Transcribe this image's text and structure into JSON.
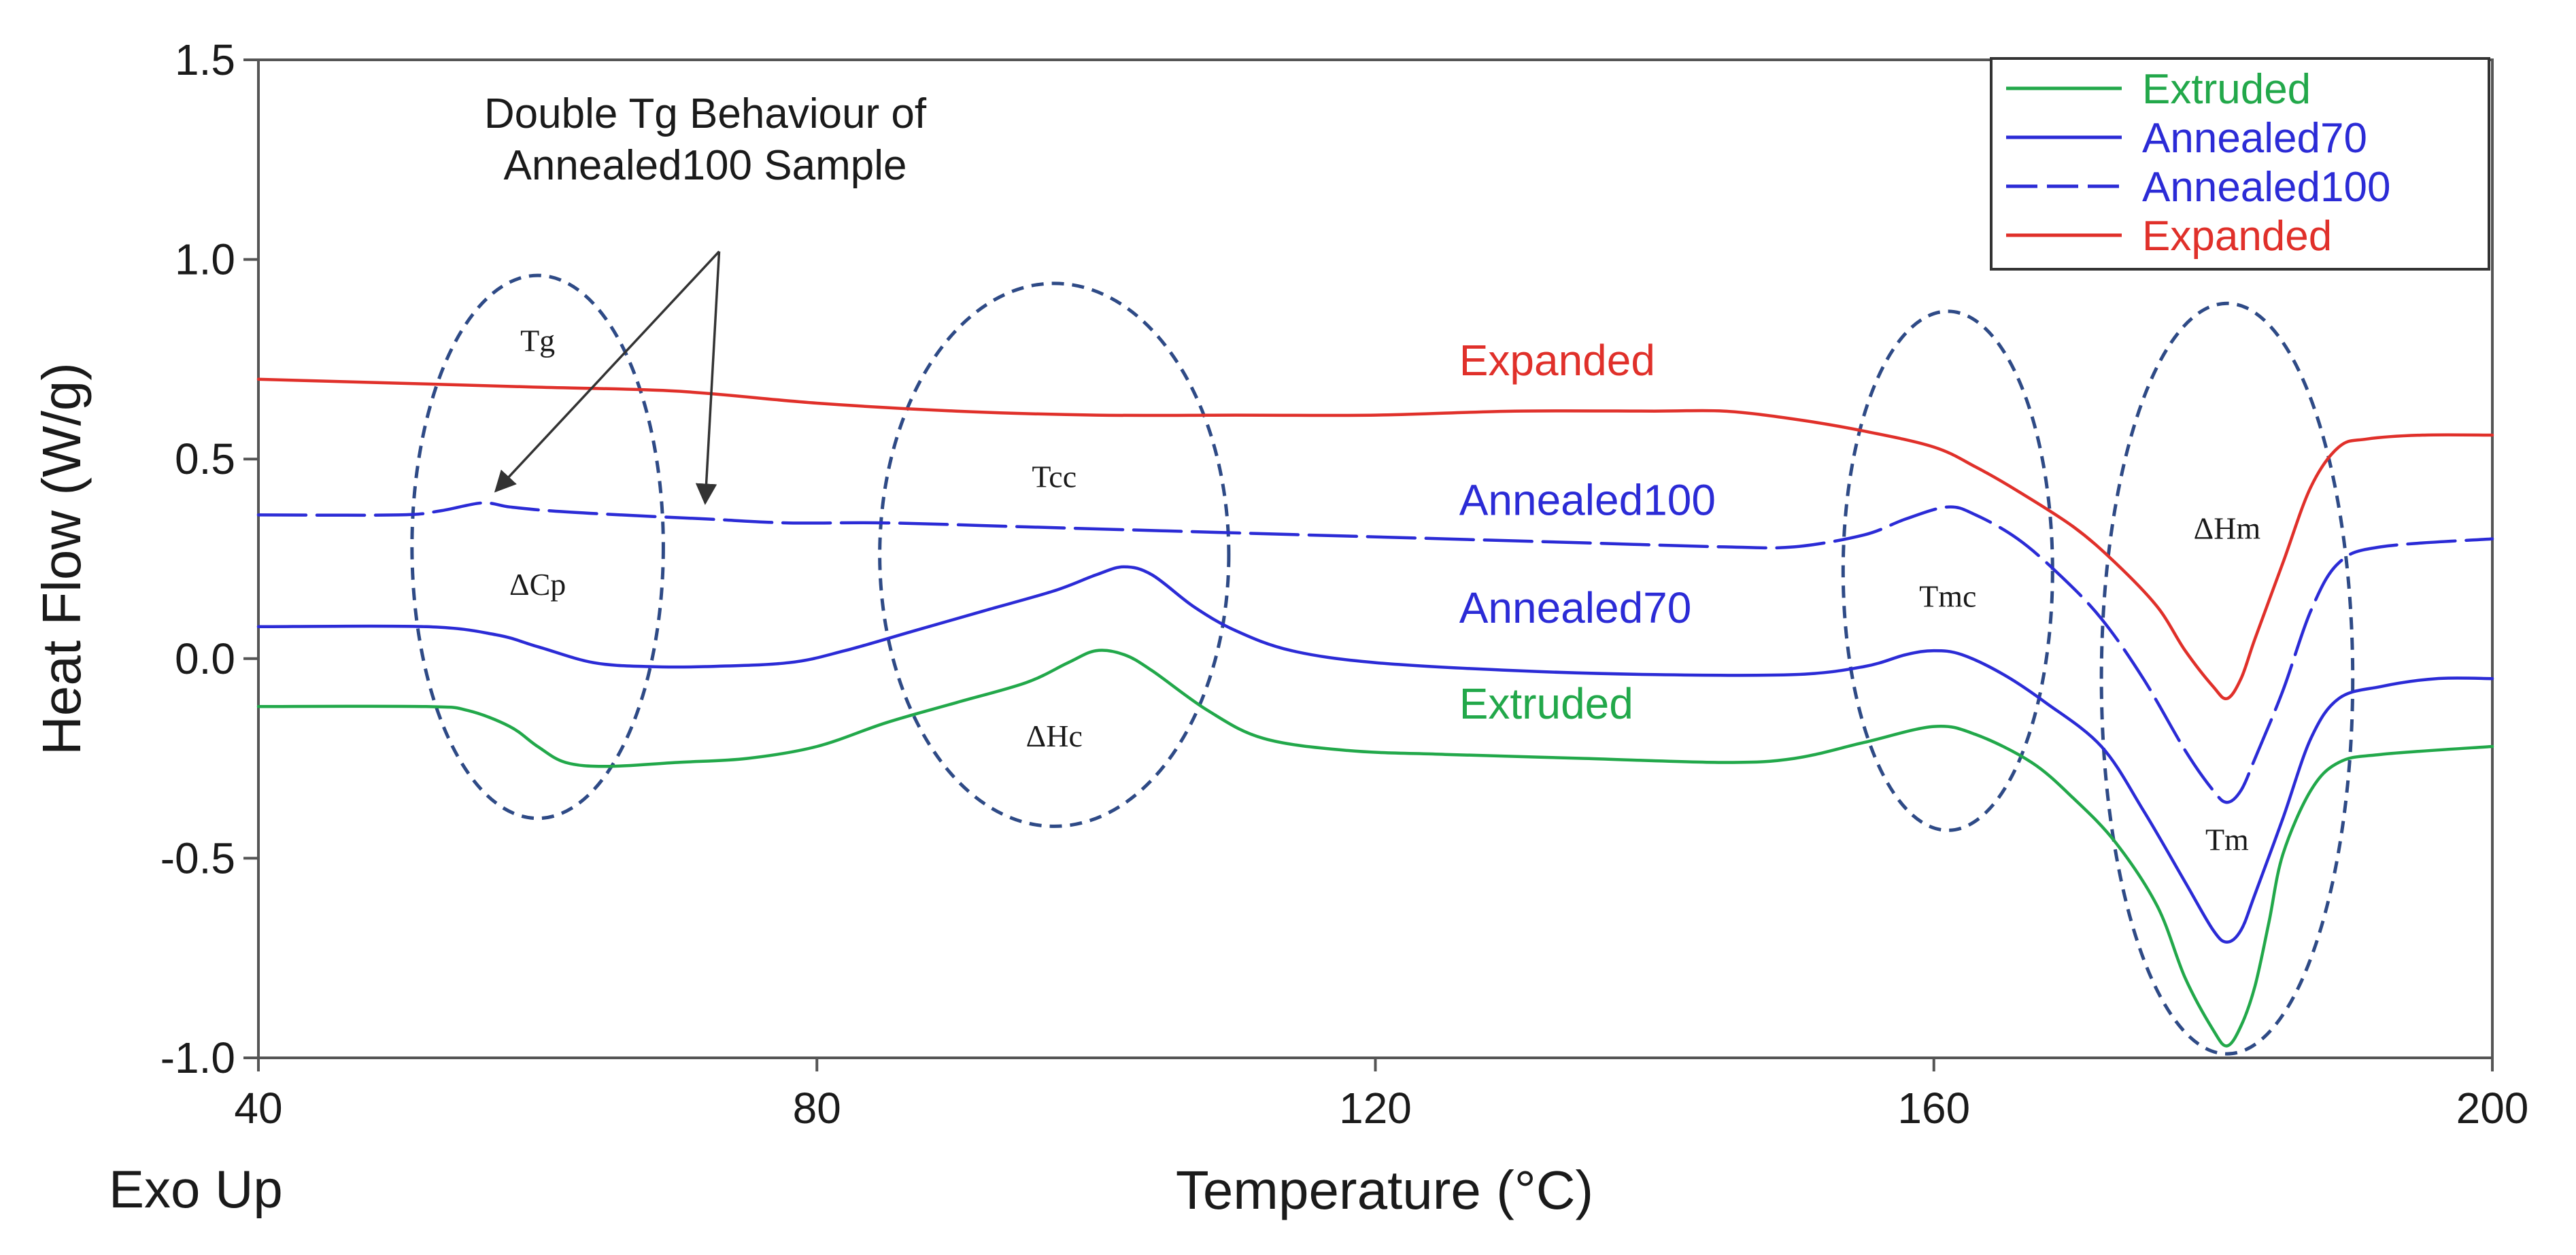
{
  "chart_data": {
    "type": "line",
    "title": "",
    "xlabel": "Temperature (°C)",
    "ylabel": "Heat Flow (W/g)",
    "corner_note": "Exo Up",
    "xlim": [
      40,
      200
    ],
    "ylim": [
      -1.0,
      1.5
    ],
    "x_ticks": [
      40,
      80,
      120,
      160,
      200
    ],
    "x_tick_labels": [
      "40",
      "80",
      "120",
      "160",
      "200"
    ],
    "y_ticks": [
      1.5,
      1.0,
      0.5,
      0.0,
      -0.5,
      -1.0
    ],
    "y_tick_labels": [
      "1.5",
      "1.0",
      "0.5",
      "0.0",
      "-0.5",
      "-1.0"
    ],
    "grid": false,
    "legend_position": "top-right",
    "series": [
      {
        "name": "Extruded",
        "color": "#22a84a",
        "dash": "solid",
        "inline_label": "Extruded",
        "label_at": [
          126,
          -0.15
        ],
        "points": [
          [
            40,
            -0.12
          ],
          [
            52,
            -0.12
          ],
          [
            55,
            -0.13
          ],
          [
            58,
            -0.17
          ],
          [
            60,
            -0.22
          ],
          [
            62,
            -0.26
          ],
          [
            65,
            -0.27
          ],
          [
            70,
            -0.26
          ],
          [
            75,
            -0.25
          ],
          [
            80,
            -0.22
          ],
          [
            85,
            -0.16
          ],
          [
            90,
            -0.11
          ],
          [
            95,
            -0.06
          ],
          [
            98,
            -0.01
          ],
          [
            100,
            0.02
          ],
          [
            102,
            0.01
          ],
          [
            104,
            -0.03
          ],
          [
            108,
            -0.13
          ],
          [
            112,
            -0.2
          ],
          [
            118,
            -0.23
          ],
          [
            125,
            -0.24
          ],
          [
            135,
            -0.25
          ],
          [
            145,
            -0.26
          ],
          [
            150,
            -0.25
          ],
          [
            155,
            -0.21
          ],
          [
            160,
            -0.17
          ],
          [
            163,
            -0.19
          ],
          [
            167,
            -0.26
          ],
          [
            170,
            -0.35
          ],
          [
            173,
            -0.46
          ],
          [
            176,
            -0.62
          ],
          [
            178,
            -0.8
          ],
          [
            180,
            -0.93
          ],
          [
            181,
            -0.97
          ],
          [
            182,
            -0.92
          ],
          [
            183,
            -0.82
          ],
          [
            184,
            -0.66
          ],
          [
            185,
            -0.49
          ],
          [
            187,
            -0.33
          ],
          [
            189,
            -0.26
          ],
          [
            192,
            -0.24
          ],
          [
            200,
            -0.22
          ]
        ]
      },
      {
        "name": "Annealed70",
        "color": "#2b2bd6",
        "dash": "solid",
        "inline_label": "Annealed70",
        "label_at": [
          126,
          0.09
        ],
        "points": [
          [
            40,
            0.08
          ],
          [
            52,
            0.08
          ],
          [
            57,
            0.06
          ],
          [
            60,
            0.03
          ],
          [
            64,
            -0.01
          ],
          [
            68,
            -0.02
          ],
          [
            72,
            -0.02
          ],
          [
            78,
            -0.01
          ],
          [
            82,
            0.02
          ],
          [
            87,
            0.07
          ],
          [
            92,
            0.12
          ],
          [
            97,
            0.17
          ],
          [
            100,
            0.21
          ],
          [
            102,
            0.23
          ],
          [
            104,
            0.21
          ],
          [
            107,
            0.13
          ],
          [
            110,
            0.07
          ],
          [
            114,
            0.02
          ],
          [
            120,
            -0.01
          ],
          [
            130,
            -0.03
          ],
          [
            140,
            -0.04
          ],
          [
            150,
            -0.04
          ],
          [
            155,
            -0.02
          ],
          [
            158,
            0.01
          ],
          [
            160,
            0.02
          ],
          [
            162,
            0.01
          ],
          [
            165,
            -0.04
          ],
          [
            168,
            -0.11
          ],
          [
            172,
            -0.22
          ],
          [
            175,
            -0.38
          ],
          [
            178,
            -0.56
          ],
          [
            180,
            -0.68
          ],
          [
            181,
            -0.71
          ],
          [
            182,
            -0.68
          ],
          [
            183,
            -0.59
          ],
          [
            185,
            -0.4
          ],
          [
            187,
            -0.2
          ],
          [
            189,
            -0.1
          ],
          [
            192,
            -0.07
          ],
          [
            196,
            -0.05
          ],
          [
            200,
            -0.05
          ]
        ]
      },
      {
        "name": "Annealed100",
        "color": "#2b2bd6",
        "dash": "dashed",
        "inline_label": "Annealed100",
        "label_at": [
          126,
          0.36
        ],
        "points": [
          [
            40,
            0.36
          ],
          [
            50,
            0.36
          ],
          [
            53,
            0.37
          ],
          [
            56,
            0.39
          ],
          [
            58,
            0.38
          ],
          [
            61,
            0.37
          ],
          [
            66,
            0.36
          ],
          [
            72,
            0.35
          ],
          [
            78,
            0.34
          ],
          [
            85,
            0.34
          ],
          [
            95,
            0.33
          ],
          [
            105,
            0.32
          ],
          [
            115,
            0.31
          ],
          [
            125,
            0.3
          ],
          [
            135,
            0.29
          ],
          [
            145,
            0.28
          ],
          [
            150,
            0.28
          ],
          [
            155,
            0.31
          ],
          [
            158,
            0.35
          ],
          [
            161,
            0.38
          ],
          [
            163,
            0.36
          ],
          [
            166,
            0.3
          ],
          [
            169,
            0.21
          ],
          [
            172,
            0.1
          ],
          [
            175,
            -0.05
          ],
          [
            178,
            -0.23
          ],
          [
            180,
            -0.33
          ],
          [
            181,
            -0.36
          ],
          [
            182,
            -0.33
          ],
          [
            183,
            -0.25
          ],
          [
            185,
            -0.08
          ],
          [
            187,
            0.12
          ],
          [
            189,
            0.24
          ],
          [
            192,
            0.28
          ],
          [
            200,
            0.3
          ]
        ]
      },
      {
        "name": "Expanded",
        "color": "#e0302a",
        "dash": "solid",
        "inline_label": "Expanded",
        "label_at": [
          126,
          0.71
        ],
        "points": [
          [
            40,
            0.7
          ],
          [
            50,
            0.69
          ],
          [
            60,
            0.68
          ],
          [
            70,
            0.67
          ],
          [
            80,
            0.64
          ],
          [
            90,
            0.62
          ],
          [
            100,
            0.61
          ],
          [
            110,
            0.61
          ],
          [
            120,
            0.61
          ],
          [
            130,
            0.62
          ],
          [
            140,
            0.62
          ],
          [
            145,
            0.62
          ],
          [
            150,
            0.6
          ],
          [
            155,
            0.57
          ],
          [
            160,
            0.53
          ],
          [
            163,
            0.48
          ],
          [
            166,
            0.42
          ],
          [
            170,
            0.33
          ],
          [
            173,
            0.24
          ],
          [
            176,
            0.13
          ],
          [
            178,
            0.02
          ],
          [
            180,
            -0.07
          ],
          [
            181,
            -0.1
          ],
          [
            182,
            -0.05
          ],
          [
            183,
            0.05
          ],
          [
            185,
            0.24
          ],
          [
            187,
            0.43
          ],
          [
            189,
            0.53
          ],
          [
            191,
            0.55
          ],
          [
            195,
            0.56
          ],
          [
            200,
            0.56
          ]
        ]
      }
    ],
    "ellipses": [
      {
        "name": "tg-region",
        "cx": 60,
        "cy": 0.28,
        "rx": 9,
        "ry": 0.68,
        "labels": [
          {
            "text": "Tg",
            "x": 60,
            "y": 0.77
          },
          {
            "text": "ΔCp",
            "x": 60,
            "y": 0.16
          }
        ]
      },
      {
        "name": "tcc-region",
        "cx": 97,
        "cy": 0.26,
        "rx": 12.5,
        "ry": 0.68,
        "labels": [
          {
            "text": "Tcc",
            "x": 97,
            "y": 0.43
          },
          {
            "text": "ΔHc",
            "x": 97,
            "y": -0.22
          }
        ]
      },
      {
        "name": "tmc-region",
        "cx": 161,
        "cy": 0.22,
        "rx": 7.5,
        "ry": 0.65,
        "labels": [
          {
            "text": "Tmc",
            "x": 161,
            "y": 0.13
          }
        ]
      },
      {
        "name": "tm-region",
        "cx": 181,
        "cy": -0.05,
        "rx": 9,
        "ry": 0.94,
        "labels": [
          {
            "text": "ΔHm",
            "x": 181,
            "y": 0.3
          },
          {
            "text": "Tm",
            "x": 181,
            "y": -0.48
          }
        ]
      }
    ],
    "annotations": [
      {
        "text_lines": [
          "Double Tg Behaviour of",
          "Annealed100 Sample"
        ],
        "text_at": [
          72,
          1.33
        ],
        "arrows": [
          {
            "from": [
              73,
              1.02
            ],
            "to": [
              57,
              0.42
            ]
          },
          {
            "from": [
              73,
              1.02
            ],
            "to": [
              72,
              0.39
            ]
          }
        ]
      }
    ]
  }
}
